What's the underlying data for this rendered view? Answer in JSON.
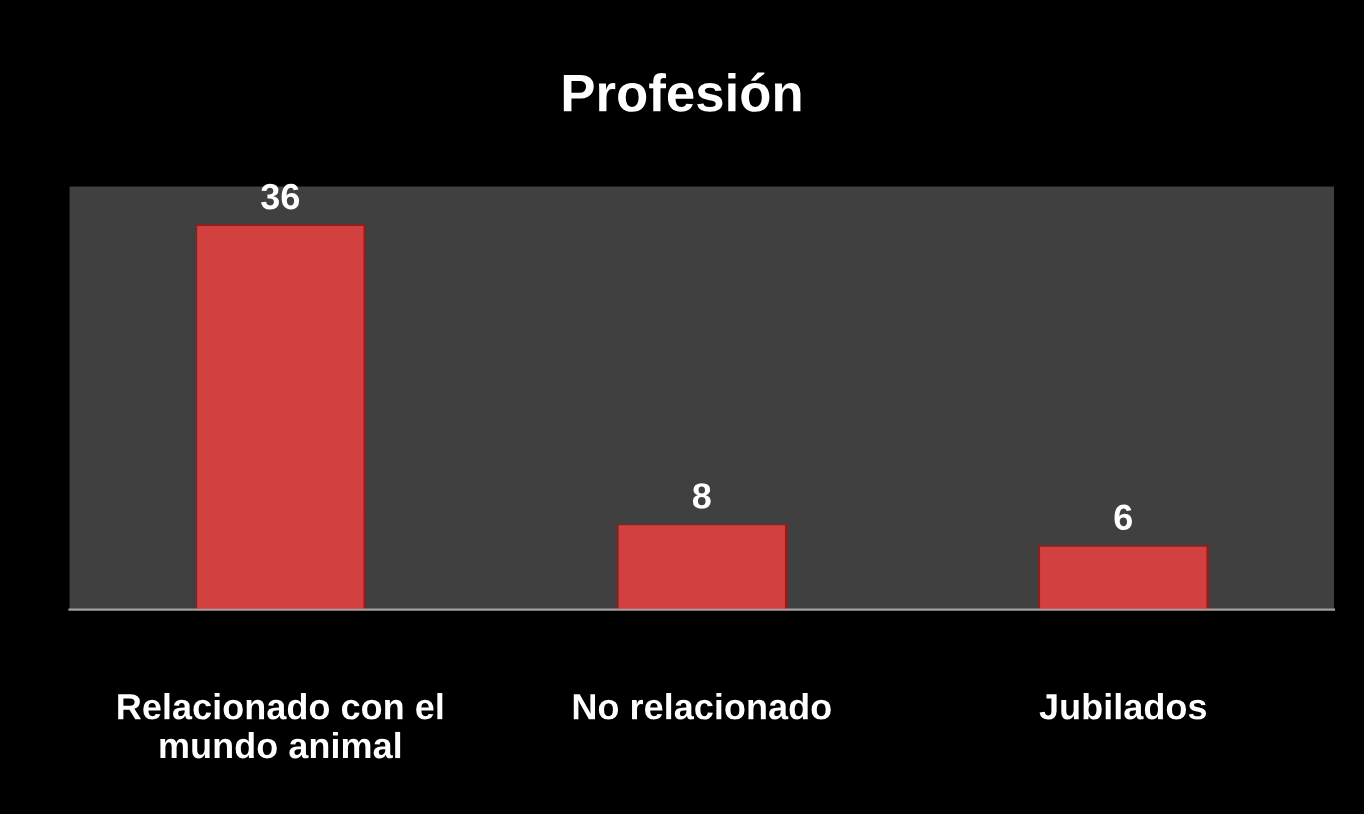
{
  "chart_data": {
    "type": "bar",
    "title": "Profesión",
    "categories": [
      "Relacionado con el\nmundo animal",
      "No relacionado",
      "Jubilados"
    ],
    "values": [
      36,
      8,
      6
    ],
    "color": "#d2403f",
    "data_labels": true,
    "grid": false,
    "legend": false
  }
}
